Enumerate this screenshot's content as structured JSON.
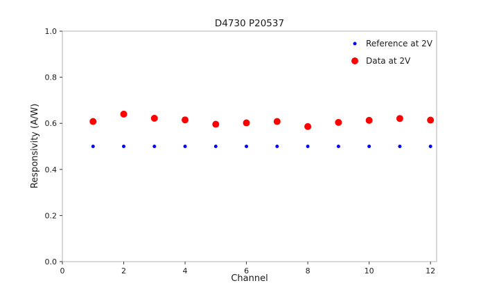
{
  "page": {
    "background": "#ffffff",
    "frame_color": "#b3b3b3",
    "tick_color": "#333333",
    "text_color": "#1a1a1a"
  },
  "chart_data": {
    "type": "scatter",
    "title": "D4730 P20537",
    "xlabel": "Channel",
    "ylabel": "Responsivity (A/W)",
    "xlim": [
      0,
      12.2
    ],
    "ylim": [
      0.0,
      1.0
    ],
    "xticks": [
      0,
      2,
      4,
      6,
      8,
      10,
      12
    ],
    "yticks": [
      0.0,
      0.2,
      0.4,
      0.6,
      0.8,
      1.0
    ],
    "xtick_labels": [
      "0",
      "2",
      "4",
      "6",
      "8",
      "10",
      "12"
    ],
    "ytick_labels": [
      "0.0",
      "0.2",
      "0.4",
      "0.6",
      "0.8",
      "1.0"
    ],
    "grid": false,
    "legend_position": "upper right",
    "x": [
      1,
      2,
      3,
      4,
      5,
      6,
      7,
      8,
      9,
      10,
      11,
      12
    ],
    "series": [
      {
        "name": "Reference at 2V",
        "color": "#0000ff",
        "marker_size": 2.5,
        "values": [
          0.5,
          0.5,
          0.5,
          0.5,
          0.5,
          0.5,
          0.5,
          0.5,
          0.5,
          0.5,
          0.5,
          0.5
        ]
      },
      {
        "name": "Data at 2V",
        "color": "#ff0000",
        "marker_size": 5,
        "values": [
          0.608,
          0.64,
          0.622,
          0.615,
          0.596,
          0.602,
          0.608,
          0.586,
          0.604,
          0.613,
          0.621,
          0.614
        ]
      }
    ]
  }
}
